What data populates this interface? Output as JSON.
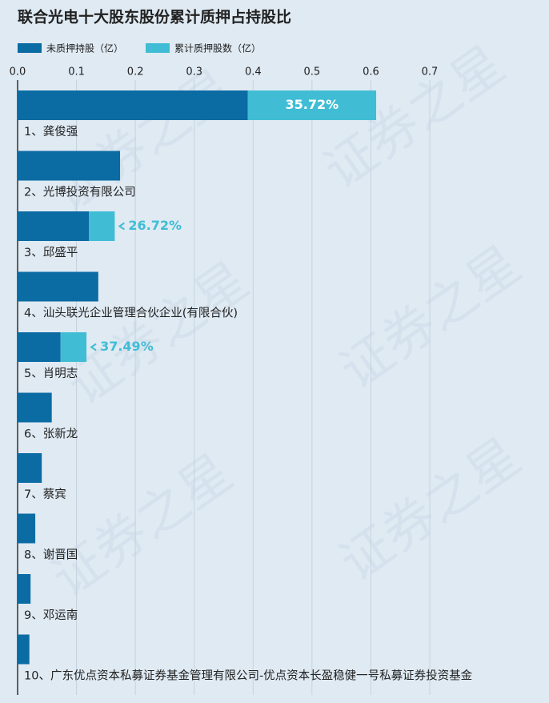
{
  "chart_data": {
    "type": "stacked_bar_horizontal",
    "title": "联合光电十大股东股份累计质押占持股比",
    "watermark": "证券之星",
    "categories": [
      "1、龚俊强",
      "2、光博投资有限公司",
      "3、邱盛平",
      "4、汕头联光企业管理合伙企业(有限合伙)",
      "5、肖明志",
      "6、张新龙",
      "7、蔡宾",
      "8、谢晋国",
      "9、邓运南",
      "10、广东优点资本私募证券基金管理有限公司-优点资本长盈稳健一号私募证券投资基金"
    ],
    "series": [
      {
        "name": "未质押持股（亿）",
        "color": "#0b6ba3",
        "values": [
          0.391,
          0.174,
          0.121,
          0.137,
          0.073,
          0.058,
          0.041,
          0.03,
          0.022,
          0.02
        ]
      },
      {
        "name": "累计质押股数（亿）",
        "color": "#40bdd5",
        "values": [
          0.218,
          null,
          0.044,
          null,
          0.044,
          null,
          null,
          null,
          null,
          null
        ]
      }
    ],
    "pledge_ratios": {
      "values": [
        35.72,
        null,
        26.72,
        null,
        37.49,
        null,
        null,
        null,
        null,
        null
      ],
      "value_labels": [
        "35.72%",
        null,
        "26.72%",
        null,
        "37.49%",
        null,
        null,
        null,
        null,
        null
      ]
    },
    "xlim": [
      0,
      0.7
    ],
    "xticks": [
      {
        "value": 0,
        "label": "0.0"
      },
      0.1,
      0.2,
      0.3,
      0.4,
      0.5,
      0.6,
      0.7
    ],
    "grid": true
  }
}
